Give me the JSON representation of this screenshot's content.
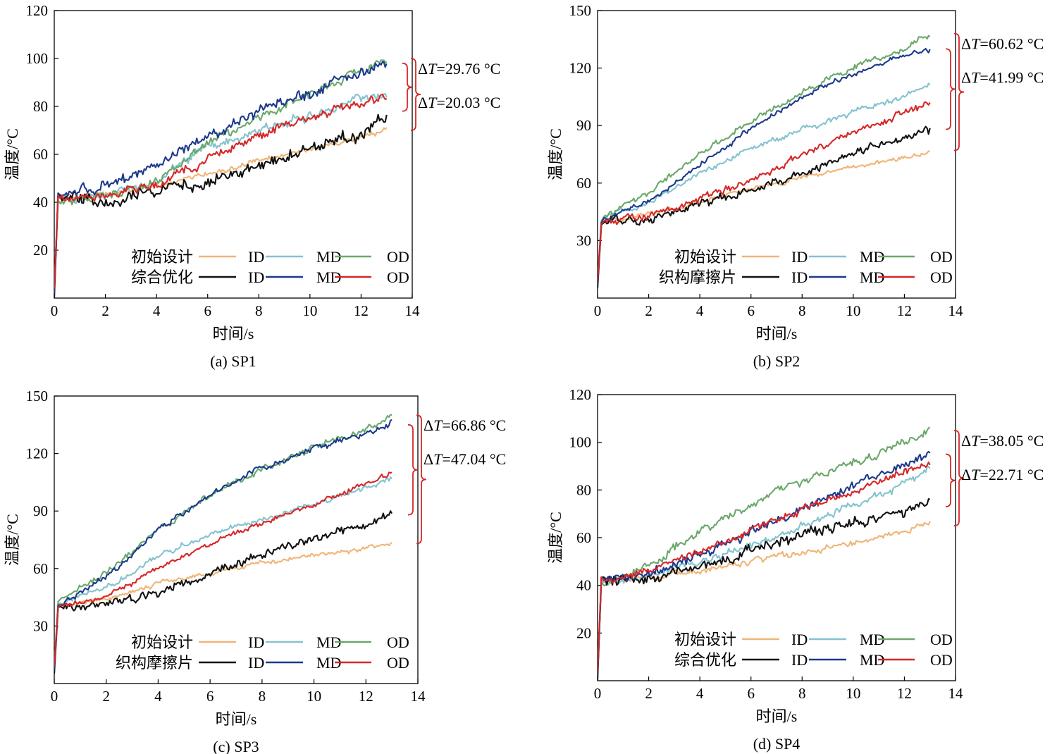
{
  "figure": {
    "legend_row_labels": [
      "初始设计",
      "综合优化",
      "织构摩擦片"
    ],
    "colors": {
      "initial_ID": "#f0b577",
      "initial_MD": "#84c3cf",
      "initial_OD": "#6aa86a",
      "opt_ID": "#111111",
      "opt_MD": "#1b3a8c",
      "opt_OD": "#d62728",
      "bracket": "#d62728"
    }
  },
  "chart_data": [
    {
      "type": "line",
      "caption": "(a) SP1",
      "xlabel": "时间/s",
      "ylabel": "温度/°C",
      "xlim": [
        0,
        14
      ],
      "ylim": [
        0,
        120
      ],
      "xticks": [
        "0",
        "2",
        "4",
        "6",
        "8",
        "10",
        "12",
        "14"
      ],
      "yticks": [
        "20",
        "40",
        "60",
        "80",
        "100",
        "120"
      ],
      "ytick_values": [
        20,
        40,
        60,
        80,
        100,
        120
      ],
      "legend": {
        "row1": "初始设计",
        "row2": "综合优化",
        "entries": [
          "ID",
          "MD",
          "OD"
        ]
      },
      "annotations": {
        "dt_big": "29.76 °C",
        "dt_small": "20.03 °C",
        "bracket_big": [
          70,
          100
        ],
        "bracket_small": [
          78,
          98
        ]
      },
      "start_temp": 0,
      "series": [
        {
          "name": "ID",
          "group": "初始设计",
          "color": "#f0b577",
          "x": [
            0.2,
            2,
            4,
            6,
            8,
            10,
            12,
            13
          ],
          "y": [
            42,
            43,
            47,
            52,
            57,
            62,
            67,
            70
          ],
          "noise": 1.2
        },
        {
          "name": "MD",
          "group": "初始设计",
          "color": "#84c3cf",
          "x": [
            0.2,
            2,
            4,
            6,
            8,
            10,
            12,
            13
          ],
          "y": [
            42,
            43,
            49,
            63,
            70,
            76,
            84,
            85
          ],
          "noise": 2
        },
        {
          "name": "OD",
          "group": "初始设计",
          "color": "#6aa86a",
          "x": [
            0.2,
            2,
            4,
            6,
            8,
            10,
            12,
            13
          ],
          "y": [
            40,
            43,
            48,
            64,
            75,
            85,
            95,
            100
          ],
          "noise": 2
        },
        {
          "name": "ID",
          "group": "综合优化",
          "color": "#111111",
          "x": [
            0.2,
            2,
            4,
            6,
            8,
            10,
            12,
            13
          ],
          "y": [
            42,
            40,
            45,
            48,
            56,
            62,
            68,
            77
          ],
          "noise": 3
        },
        {
          "name": "MD",
          "group": "综合优化",
          "color": "#1b3a8c",
          "x": [
            0.2,
            2,
            4,
            6,
            8,
            10,
            12,
            13
          ],
          "y": [
            43,
            47,
            55,
            67,
            78,
            85,
            94,
            98
          ],
          "noise": 2.5
        },
        {
          "name": "OD",
          "group": "综合优化",
          "color": "#d62728",
          "x": [
            0.2,
            2,
            4,
            6,
            8,
            10,
            12,
            13
          ],
          "y": [
            42,
            43,
            47,
            58,
            68,
            75,
            82,
            84
          ],
          "noise": 2
        }
      ]
    },
    {
      "type": "line",
      "caption": "(b) SP2",
      "xlabel": "时间/s",
      "ylabel": "温度/°C",
      "xlim": [
        0,
        14
      ],
      "ylim": [
        0,
        150
      ],
      "xticks": [
        "0",
        "2",
        "4",
        "6",
        "8",
        "10",
        "12",
        "14"
      ],
      "yticks": [
        "30",
        "60",
        "90",
        "120",
        "150"
      ],
      "ytick_values": [
        30,
        60,
        90,
        120,
        150
      ],
      "legend": {
        "row1": "初始设计",
        "row2": "织构摩擦片",
        "entries": [
          "ID",
          "MD",
          "OD"
        ]
      },
      "annotations": {
        "dt_big": "60.62 °C",
        "dt_small": "41.99 °C",
        "bracket_big": [
          77,
          138
        ],
        "bracket_small": [
          88,
          130
        ]
      },
      "start_temp": 5,
      "series": [
        {
          "name": "ID",
          "group": "初始设计",
          "color": "#f0b577",
          "x": [
            0.2,
            2,
            4,
            6,
            8,
            10,
            12,
            13
          ],
          "y": [
            40,
            44,
            50,
            57,
            63,
            68,
            73,
            76
          ],
          "noise": 1.2
        },
        {
          "name": "MD",
          "group": "初始设计",
          "color": "#84c3cf",
          "x": [
            0.2,
            2,
            4,
            6,
            8,
            10,
            12,
            13
          ],
          "y": [
            42,
            50,
            65,
            78,
            88,
            97,
            105,
            111
          ],
          "noise": 1.5
        },
        {
          "name": "OD",
          "group": "初始设计",
          "color": "#6aa86a",
          "x": [
            0.2,
            2,
            4,
            6,
            8,
            10,
            12,
            13
          ],
          "y": [
            42,
            55,
            75,
            92,
            107,
            120,
            130,
            138
          ],
          "noise": 1.8
        },
        {
          "name": "ID",
          "group": "织构摩擦片",
          "color": "#111111",
          "x": [
            0.2,
            2,
            4,
            6,
            8,
            10,
            12,
            13
          ],
          "y": [
            40,
            42,
            50,
            56,
            65,
            76,
            84,
            88
          ],
          "noise": 2.5
        },
        {
          "name": "MD",
          "group": "织构摩擦片",
          "color": "#1b3a8c",
          "x": [
            0.2,
            2,
            4,
            6,
            8,
            10,
            12,
            13
          ],
          "y": [
            41,
            50,
            70,
            88,
            105,
            117,
            127,
            130
          ],
          "noise": 1.5
        },
        {
          "name": "OD",
          "group": "织构摩擦片",
          "color": "#d62728",
          "x": [
            0.2,
            2,
            4,
            6,
            8,
            10,
            12,
            13
          ],
          "y": [
            40,
            43,
            52,
            62,
            75,
            86,
            97,
            102
          ],
          "noise": 2
        }
      ]
    },
    {
      "type": "line",
      "caption": "(c) SP3",
      "xlabel": "时间/s",
      "ylabel": "温度/°C",
      "xlim": [
        0,
        14
      ],
      "ylim": [
        0,
        150
      ],
      "xticks": [
        "0",
        "2",
        "4",
        "6",
        "8",
        "10",
        "12",
        "14"
      ],
      "yticks": [
        "30",
        "60",
        "90",
        "120",
        "150"
      ],
      "ytick_values": [
        30,
        60,
        90,
        120,
        150
      ],
      "legend": {
        "row1": "初始设计",
        "row2": "织构摩擦片",
        "entries": [
          "ID",
          "MD",
          "OD"
        ]
      },
      "annotations": {
        "dt_big": "66.86 °C",
        "dt_small": "47.04 °C",
        "bracket_big": [
          73,
          140
        ],
        "bracket_small": [
          88,
          135
        ]
      },
      "start_temp": 5,
      "series": [
        {
          "name": "ID",
          "group": "初始设计",
          "color": "#f0b577",
          "x": [
            0.2,
            2,
            4,
            6,
            8,
            10,
            12,
            13
          ],
          "y": [
            41,
            44,
            52,
            58,
            63,
            67,
            71,
            73
          ],
          "noise": 1.2
        },
        {
          "name": "MD",
          "group": "初始设计",
          "color": "#84c3cf",
          "x": [
            0.2,
            2,
            4,
            6,
            8,
            10,
            12,
            13
          ],
          "y": [
            42,
            50,
            66,
            78,
            86,
            94,
            102,
            108
          ],
          "noise": 1.5
        },
        {
          "name": "OD",
          "group": "初始设计",
          "color": "#6aa86a",
          "x": [
            0.2,
            2,
            4,
            6,
            8,
            10,
            12,
            13
          ],
          "y": [
            43,
            58,
            80,
            98,
            112,
            123,
            133,
            140
          ],
          "noise": 1.8
        },
        {
          "name": "ID",
          "group": "织构摩擦片",
          "color": "#111111",
          "x": [
            0.2,
            2,
            4,
            6,
            8,
            10,
            12,
            13
          ],
          "y": [
            40,
            41,
            48,
            58,
            67,
            75,
            83,
            88
          ],
          "noise": 2.5
        },
        {
          "name": "MD",
          "group": "织构摩擦片",
          "color": "#1b3a8c",
          "x": [
            0.2,
            2,
            4,
            6,
            8,
            10,
            12,
            13
          ],
          "y": [
            41,
            56,
            80,
            98,
            112,
            122,
            131,
            136
          ],
          "noise": 1.8
        },
        {
          "name": "OD",
          "group": "织构摩擦片",
          "color": "#d62728",
          "x": [
            0.2,
            2,
            4,
            6,
            8,
            10,
            12,
            13
          ],
          "y": [
            40,
            45,
            60,
            73,
            84,
            94,
            104,
            111
          ],
          "noise": 1.5
        }
      ]
    },
    {
      "type": "line",
      "caption": "(d) SP4",
      "xlabel": "时间/s",
      "ylabel": "温度/°C",
      "xlim": [
        0,
        14
      ],
      "ylim": [
        0,
        120
      ],
      "xticks": [
        "0",
        "2",
        "4",
        "6",
        "8",
        "10",
        "12",
        "14"
      ],
      "yticks": [
        "20",
        "40",
        "60",
        "80",
        "100",
        "120"
      ],
      "ytick_values": [
        20,
        40,
        60,
        80,
        100,
        120
      ],
      "legend": {
        "row1": "初始设计",
        "row2": "综合优化",
        "entries": [
          "ID",
          "MD",
          "OD"
        ]
      },
      "annotations": {
        "dt_big": "38.05 °C",
        "dt_small": "22.71 °C",
        "bracket_big": [
          65,
          105
        ],
        "bracket_small": [
          73,
          95
        ]
      },
      "start_temp": 0,
      "series": [
        {
          "name": "ID",
          "group": "初始设计",
          "color": "#f0b577",
          "x": [
            0.2,
            2,
            4,
            6,
            8,
            10,
            12,
            13
          ],
          "y": [
            42,
            43,
            46,
            50,
            54,
            58,
            63,
            66
          ],
          "noise": 1.5
        },
        {
          "name": "MD",
          "group": "初始设计",
          "color": "#84c3cf",
          "x": [
            0.2,
            2,
            4,
            6,
            8,
            10,
            12,
            13
          ],
          "y": [
            41,
            44,
            50,
            57,
            65,
            74,
            83,
            89
          ],
          "noise": 1.8
        },
        {
          "name": "OD",
          "group": "初始设计",
          "color": "#6aa86a",
          "x": [
            0.2,
            2,
            4,
            6,
            8,
            10,
            12,
            13
          ],
          "y": [
            40,
            48,
            62,
            75,
            84,
            92,
            100,
            105
          ],
          "noise": 2
        },
        {
          "name": "ID",
          "group": "综合优化",
          "color": "#111111",
          "x": [
            0.2,
            2,
            4,
            6,
            8,
            10,
            12,
            13
          ],
          "y": [
            42,
            43,
            48,
            55,
            60,
            66,
            71,
            75
          ],
          "noise": 2.5
        },
        {
          "name": "MD",
          "group": "综合优化",
          "color": "#1b3a8c",
          "x": [
            0.2,
            2,
            4,
            6,
            8,
            10,
            12,
            13
          ],
          "y": [
            42,
            45,
            52,
            62,
            72,
            82,
            91,
            95
          ],
          "noise": 2.2
        },
        {
          "name": "OD",
          "group": "综合优化",
          "color": "#d62728",
          "x": [
            0.2,
            2,
            4,
            6,
            8,
            10,
            12,
            13
          ],
          "y": [
            42,
            46,
            54,
            63,
            72,
            80,
            87,
            91
          ],
          "noise": 1.8
        }
      ]
    }
  ]
}
